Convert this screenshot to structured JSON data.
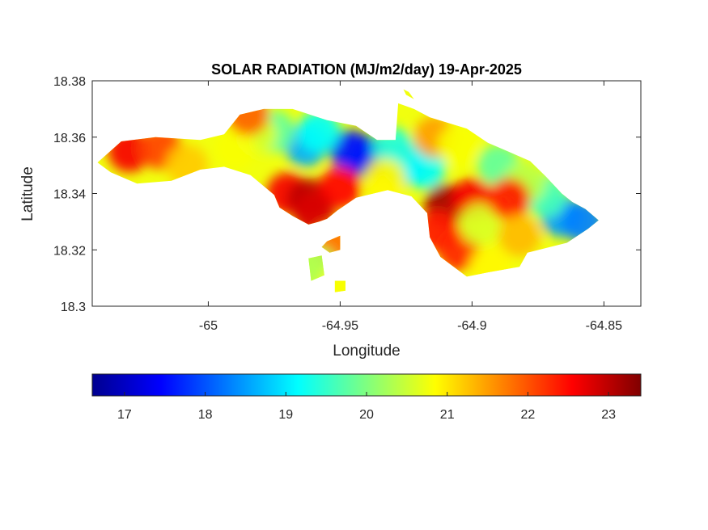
{
  "chart_data": {
    "type": "heatmap",
    "title": "SOLAR RADIATION (MJ/m2/day) 19-Apr-2025",
    "xlabel": "Longitude",
    "ylabel": "Latitude",
    "xlim": [
      -65.044,
      -64.836
    ],
    "ylim": [
      18.3,
      18.38
    ],
    "xticks": [
      -65,
      -64.95,
      -64.9,
      -64.85
    ],
    "xtick_labels": [
      "-65",
      "-64.95",
      "-64.9",
      "-64.85"
    ],
    "yticks": [
      18.3,
      18.32,
      18.34,
      18.36,
      18.38
    ],
    "ytick_labels": [
      "18.3",
      "18.32",
      "18.34",
      "18.36",
      "18.38"
    ],
    "grid": false,
    "colormap": "jet",
    "colorbar": {
      "orientation": "horizontal",
      "placement": "below",
      "clim": [
        16.6,
        23.4
      ],
      "ticks": [
        17,
        18,
        19,
        20,
        21,
        22,
        23
      ],
      "tick_labels": [
        "17",
        "18",
        "19",
        "20",
        "21",
        "22",
        "23"
      ]
    },
    "region_outline": [
      [
        -65.042,
        18.351
      ],
      [
        -65.033,
        18.3585
      ],
      [
        -65.02,
        18.36
      ],
      [
        -65.003,
        18.359
      ],
      [
        -64.994,
        18.361
      ],
      [
        -64.988,
        18.368
      ],
      [
        -64.979,
        18.37
      ],
      [
        -64.968,
        18.37
      ],
      [
        -64.955,
        18.366
      ],
      [
        -64.944,
        18.364
      ],
      [
        -64.936,
        18.359
      ],
      [
        -64.929,
        18.359
      ],
      [
        -64.928,
        18.372
      ],
      [
        -64.922,
        18.37
      ],
      [
        -64.916,
        18.367
      ],
      [
        -64.902,
        18.363
      ],
      [
        -64.894,
        18.358
      ],
      [
        -64.889,
        18.356
      ],
      [
        -64.878,
        18.3515
      ],
      [
        -64.872,
        18.346
      ],
      [
        -64.866,
        18.34
      ],
      [
        -64.862,
        18.337
      ],
      [
        -64.857,
        18.3345
      ],
      [
        -64.852,
        18.3305
      ],
      [
        -64.856,
        18.3275
      ],
      [
        -64.864,
        18.3225
      ],
      [
        -64.879,
        18.319
      ],
      [
        -64.882,
        18.314
      ],
      [
        -64.894,
        18.312
      ],
      [
        -64.902,
        18.3105
      ],
      [
        -64.912,
        18.3175
      ],
      [
        -64.916,
        18.3245
      ],
      [
        -64.917,
        18.333
      ],
      [
        -64.923,
        18.339
      ],
      [
        -64.932,
        18.3412
      ],
      [
        -64.944,
        18.3385
      ],
      [
        -64.951,
        18.334
      ],
      [
        -64.955,
        18.331
      ],
      [
        -64.958,
        18.33
      ],
      [
        -64.962,
        18.329
      ],
      [
        -64.968,
        18.332
      ],
      [
        -64.973,
        18.335
      ],
      [
        -64.975,
        18.3395
      ],
      [
        -64.984,
        18.3465
      ],
      [
        -64.994,
        18.3495
      ],
      [
        -65.003,
        18.3485
      ],
      [
        -65.014,
        18.3445
      ],
      [
        -65.027,
        18.3435
      ],
      [
        -65.037,
        18.3475
      ]
    ],
    "islands": [
      [
        [
          -64.957,
          18.321
        ],
        [
          -64.955,
          18.323
        ],
        [
          -64.95,
          18.325
        ],
        [
          -64.95,
          18.32
        ],
        [
          -64.954,
          18.319
        ]
      ],
      [
        [
          -64.962,
          18.317
        ],
        [
          -64.957,
          18.318
        ],
        [
          -64.956,
          18.311
        ],
        [
          -64.961,
          18.309
        ]
      ],
      [
        [
          -64.952,
          18.309
        ],
        [
          -64.948,
          18.309
        ],
        [
          -64.948,
          18.3055
        ],
        [
          -64.952,
          18.305
        ]
      ],
      [
        [
          -64.926,
          18.377
        ],
        [
          -64.924,
          18.376
        ],
        [
          -64.922,
          18.3735
        ],
        [
          -64.925,
          18.375
        ]
      ]
    ],
    "data_points": [
      {
        "lon": -64.94,
        "lat": 18.353,
        "value": 17.0
      },
      {
        "lon": -64.946,
        "lat": 18.355,
        "value": 17.6
      },
      {
        "lon": -64.963,
        "lat": 18.357,
        "value": 18.6
      },
      {
        "lon": -64.958,
        "lat": 18.362,
        "value": 19.2
      },
      {
        "lon": -64.925,
        "lat": 18.3505,
        "value": 18.6
      },
      {
        "lon": -64.918,
        "lat": 18.349,
        "value": 19.2
      },
      {
        "lon": -64.93,
        "lat": 18.356,
        "value": 19.4
      },
      {
        "lon": -64.89,
        "lat": 18.35,
        "value": 19.8
      },
      {
        "lon": -64.866,
        "lat": 18.332,
        "value": 18.5
      },
      {
        "lon": -64.858,
        "lat": 18.33,
        "value": 18.3
      },
      {
        "lon": -64.872,
        "lat": 18.339,
        "value": 19.6
      },
      {
        "lon": -64.88,
        "lat": 18.344,
        "value": 20.4
      },
      {
        "lon": -64.975,
        "lat": 18.362,
        "value": 19.8
      },
      {
        "lon": -64.982,
        "lat": 18.361,
        "value": 20.6
      },
      {
        "lon": -64.99,
        "lat": 18.356,
        "value": 20.8
      },
      {
        "lon": -64.985,
        "lat": 18.368,
        "value": 21.9
      },
      {
        "lon": -65.03,
        "lat": 18.355,
        "value": 22.6
      },
      {
        "lon": -65.018,
        "lat": 18.356,
        "value": 22.1
      },
      {
        "lon": -65.008,
        "lat": 18.35,
        "value": 21.2
      },
      {
        "lon": -64.97,
        "lat": 18.34,
        "value": 22.6
      },
      {
        "lon": -64.962,
        "lat": 18.338,
        "value": 23.0
      },
      {
        "lon": -64.95,
        "lat": 18.342,
        "value": 22.5
      },
      {
        "lon": -64.96,
        "lat": 18.333,
        "value": 22.8
      },
      {
        "lon": -64.91,
        "lat": 18.336,
        "value": 23.2
      },
      {
        "lon": -64.913,
        "lat": 18.327,
        "value": 22.4
      },
      {
        "lon": -64.905,
        "lat": 18.32,
        "value": 22.3
      },
      {
        "lon": -64.9,
        "lat": 18.338,
        "value": 22.6
      },
      {
        "lon": -64.897,
        "lat": 18.329,
        "value": 20.6
      },
      {
        "lon": -64.886,
        "lat": 18.338,
        "value": 22.4
      },
      {
        "lon": -64.882,
        "lat": 18.325,
        "value": 21.3
      },
      {
        "lon": -64.893,
        "lat": 18.314,
        "value": 20.9
      },
      {
        "lon": -64.933,
        "lat": 18.345,
        "value": 20.9
      },
      {
        "lon": -64.914,
        "lat": 18.36,
        "value": 21.5
      },
      {
        "lon": -64.905,
        "lat": 18.357,
        "value": 20.8
      },
      {
        "lon": -64.953,
        "lat": 18.322,
        "value": 21.8
      },
      {
        "lon": -64.959,
        "lat": 18.314,
        "value": 20.3
      },
      {
        "lon": -64.95,
        "lat": 18.307,
        "value": 20.8
      }
    ]
  }
}
